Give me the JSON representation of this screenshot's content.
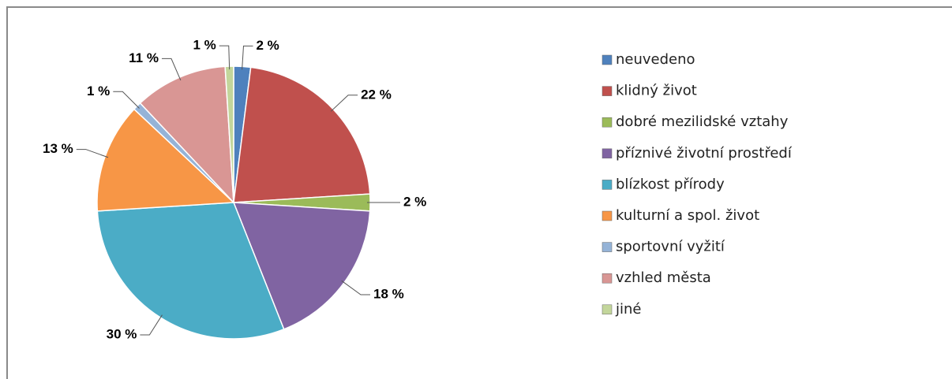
{
  "chart_data": {
    "type": "pie",
    "categories": [
      "neuvedeno",
      "klidný život",
      "dobré mezilidské vztahy",
      "příznivé životní prostředí",
      "blízkost přírody",
      "kulturní a spol. život",
      "sportovní vyžití",
      "vzhled města",
      "jiné"
    ],
    "values": [
      2,
      22,
      2,
      18,
      30,
      13,
      1,
      11,
      1
    ],
    "value_labels": [
      "2 %",
      "22 %",
      "2 %",
      "18 %",
      "30 %",
      "13 %",
      "1 %",
      "11 %",
      "1 %"
    ],
    "colors": [
      "#4f81bd",
      "#c0504d",
      "#9bbb59",
      "#8064a2",
      "#4bacc6",
      "#f79646",
      "#95b3d7",
      "#d99694",
      "#c3d69b"
    ],
    "legend": "right"
  }
}
